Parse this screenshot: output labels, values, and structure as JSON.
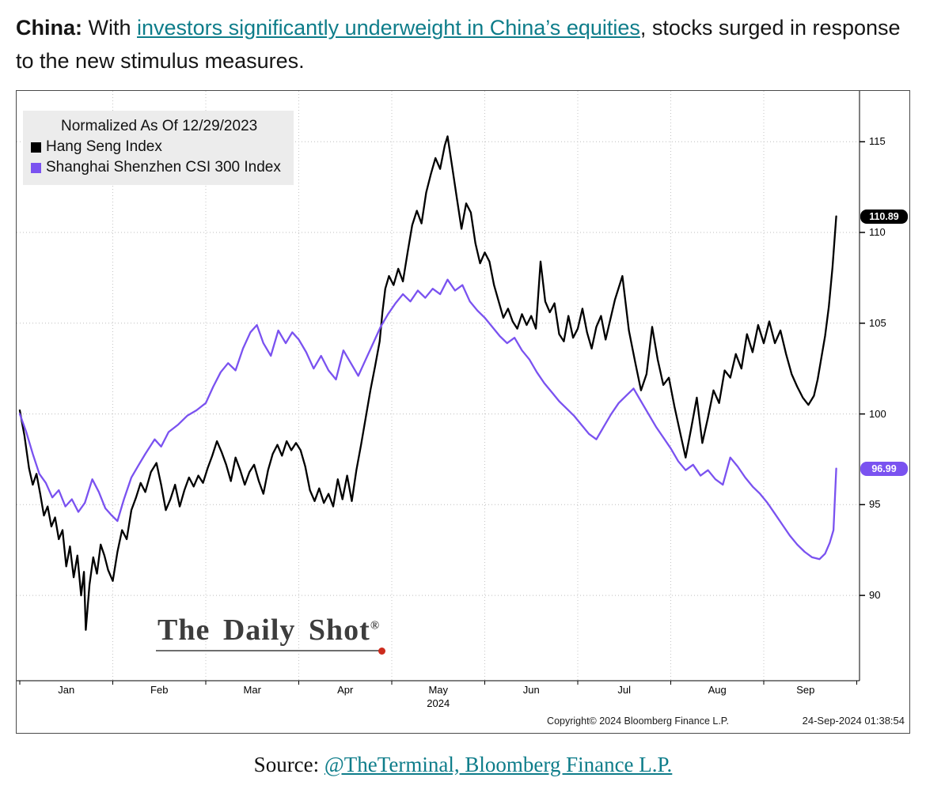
{
  "headline": {
    "bold": "China:",
    "text1": "With",
    "link_text": "investors significantly underweight in China’s equities",
    "text2": ", stocks surged in response to the new stimulus measures."
  },
  "colors": {
    "accent_link": "#0e7d8a",
    "hsi_line": "#000000",
    "csi_line": "#7a52f0",
    "legend_bg": "#ececec",
    "watermark_dot": "#cc2b1d"
  },
  "watermark": {
    "text": "The Daily Shot",
    "reg": "®"
  },
  "footer": {
    "copyright": "Copyright© 2024 Bloomberg Finance L.P.",
    "timestamp": "24-Sep-2024 01:38:54"
  },
  "source": {
    "prefix": "Source: ",
    "link_text": "@TheTerminal, Bloomberg Finance L.P."
  },
  "chart_data": {
    "type": "line",
    "legend_title": "Normalized As Of 12/29/2023",
    "x_unit": "months from 2024-01-01 (data through 24-Sep-2024)",
    "x_domain": [
      0,
      9.03
    ],
    "y_domain": [
      85.3,
      117.8
    ],
    "y_ticks": [
      90,
      95,
      100,
      105,
      110,
      115
    ],
    "grid": "dotted",
    "legend_position": "top-left",
    "x_labels": [
      {
        "label": "Jan",
        "m": 0.5
      },
      {
        "label": "Feb",
        "m": 1.5
      },
      {
        "label": "Mar",
        "m": 2.5
      },
      {
        "label": "Apr",
        "m": 3.5
      },
      {
        "label": "May",
        "m": 4.5,
        "sub": "2024"
      },
      {
        "label": "Jun",
        "m": 5.5
      },
      {
        "label": "Jul",
        "m": 6.5
      },
      {
        "label": "Aug",
        "m": 7.5
      },
      {
        "label": "Sep",
        "m": 8.45
      }
    ],
    "last_values": [
      {
        "label": "110.89",
        "value": 110.89,
        "color": "#000000",
        "series": "Hang Seng Index"
      },
      {
        "label": "96.99",
        "value": 96.99,
        "color": "#7a52f0",
        "series": "Shanghai Shenzhen CSI 300 Index"
      }
    ],
    "series": [
      {
        "name": "Hang Seng Index",
        "color": "#000000",
        "points": [
          [
            0,
            100.2
          ],
          [
            0.05,
            98.8
          ],
          [
            0.1,
            97.0
          ],
          [
            0.14,
            96.1
          ],
          [
            0.18,
            96.7
          ],
          [
            0.22,
            95.6
          ],
          [
            0.26,
            94.4
          ],
          [
            0.3,
            94.9
          ],
          [
            0.34,
            93.8
          ],
          [
            0.38,
            94.3
          ],
          [
            0.42,
            93.1
          ],
          [
            0.46,
            93.6
          ],
          [
            0.5,
            91.6
          ],
          [
            0.54,
            92.7
          ],
          [
            0.58,
            91.0
          ],
          [
            0.62,
            92.2
          ],
          [
            0.66,
            90.0
          ],
          [
            0.69,
            91.3
          ],
          [
            0.71,
            88.1
          ],
          [
            0.75,
            90.6
          ],
          [
            0.79,
            92.1
          ],
          [
            0.83,
            91.2
          ],
          [
            0.87,
            92.8
          ],
          [
            0.91,
            92.2
          ],
          [
            0.95,
            91.4
          ],
          [
            1.0,
            90.8
          ],
          [
            1.05,
            92.4
          ],
          [
            1.1,
            93.6
          ],
          [
            1.15,
            93.1
          ],
          [
            1.2,
            94.7
          ],
          [
            1.25,
            95.4
          ],
          [
            1.3,
            96.2
          ],
          [
            1.35,
            95.7
          ],
          [
            1.41,
            96.8
          ],
          [
            1.47,
            97.3
          ],
          [
            1.52,
            96.1
          ],
          [
            1.57,
            94.7
          ],
          [
            1.62,
            95.3
          ],
          [
            1.67,
            96.1
          ],
          [
            1.72,
            94.9
          ],
          [
            1.77,
            95.8
          ],
          [
            1.82,
            96.5
          ],
          [
            1.87,
            96.0
          ],
          [
            1.92,
            96.6
          ],
          [
            1.97,
            96.2
          ],
          [
            2.02,
            97.0
          ],
          [
            2.07,
            97.7
          ],
          [
            2.12,
            98.5
          ],
          [
            2.17,
            97.9
          ],
          [
            2.22,
            97.2
          ],
          [
            2.27,
            96.3
          ],
          [
            2.32,
            97.6
          ],
          [
            2.37,
            96.9
          ],
          [
            2.42,
            96.1
          ],
          [
            2.47,
            96.8
          ],
          [
            2.52,
            97.2
          ],
          [
            2.57,
            96.3
          ],
          [
            2.62,
            95.6
          ],
          [
            2.67,
            96.9
          ],
          [
            2.72,
            97.8
          ],
          [
            2.77,
            98.3
          ],
          [
            2.82,
            97.7
          ],
          [
            2.87,
            98.5
          ],
          [
            2.92,
            98.0
          ],
          [
            2.97,
            98.4
          ],
          [
            3.02,
            98.0
          ],
          [
            3.07,
            97.1
          ],
          [
            3.12,
            95.8
          ],
          [
            3.17,
            95.2
          ],
          [
            3.22,
            95.9
          ],
          [
            3.27,
            95.1
          ],
          [
            3.32,
            95.6
          ],
          [
            3.37,
            94.9
          ],
          [
            3.42,
            96.4
          ],
          [
            3.47,
            95.3
          ],
          [
            3.52,
            96.6
          ],
          [
            3.57,
            95.2
          ],
          [
            3.62,
            96.9
          ],
          [
            3.67,
            98.3
          ],
          [
            3.72,
            99.8
          ],
          [
            3.77,
            101.3
          ],
          [
            3.82,
            102.6
          ],
          [
            3.87,
            104.0
          ],
          [
            3.9,
            105.6
          ],
          [
            3.93,
            106.9
          ],
          [
            3.97,
            107.6
          ],
          [
            4.02,
            107.1
          ],
          [
            4.07,
            108.0
          ],
          [
            4.12,
            107.3
          ],
          [
            4.17,
            108.9
          ],
          [
            4.22,
            110.4
          ],
          [
            4.27,
            111.2
          ],
          [
            4.32,
            110.5
          ],
          [
            4.37,
            112.2
          ],
          [
            4.42,
            113.2
          ],
          [
            4.47,
            114.1
          ],
          [
            4.52,
            113.5
          ],
          [
            4.57,
            114.8
          ],
          [
            4.6,
            115.3
          ],
          [
            4.65,
            113.6
          ],
          [
            4.7,
            111.9
          ],
          [
            4.75,
            110.2
          ],
          [
            4.8,
            111.6
          ],
          [
            4.85,
            111.1
          ],
          [
            4.9,
            109.4
          ],
          [
            4.95,
            108.3
          ],
          [
            5.0,
            108.9
          ],
          [
            5.05,
            108.4
          ],
          [
            5.1,
            107.1
          ],
          [
            5.15,
            106.2
          ],
          [
            5.2,
            105.3
          ],
          [
            5.25,
            105.8
          ],
          [
            5.3,
            105.1
          ],
          [
            5.35,
            104.7
          ],
          [
            5.4,
            105.5
          ],
          [
            5.45,
            104.9
          ],
          [
            5.5,
            105.4
          ],
          [
            5.55,
            104.7
          ],
          [
            5.6,
            108.4
          ],
          [
            5.65,
            106.2
          ],
          [
            5.7,
            105.6
          ],
          [
            5.75,
            106.1
          ],
          [
            5.8,
            104.4
          ],
          [
            5.85,
            104.0
          ],
          [
            5.9,
            105.4
          ],
          [
            5.95,
            104.2
          ],
          [
            6.0,
            104.7
          ],
          [
            6.05,
            105.8
          ],
          [
            6.1,
            104.5
          ],
          [
            6.15,
            103.6
          ],
          [
            6.2,
            104.8
          ],
          [
            6.25,
            105.4
          ],
          [
            6.3,
            104.1
          ],
          [
            6.35,
            105.2
          ],
          [
            6.4,
            106.3
          ],
          [
            6.48,
            107.6
          ],
          [
            6.55,
            104.6
          ],
          [
            6.62,
            102.8
          ],
          [
            6.68,
            101.3
          ],
          [
            6.74,
            102.2
          ],
          [
            6.8,
            104.8
          ],
          [
            6.86,
            103.0
          ],
          [
            6.92,
            101.6
          ],
          [
            6.98,
            102.0
          ],
          [
            7.04,
            100.4
          ],
          [
            7.1,
            99.0
          ],
          [
            7.16,
            97.6
          ],
          [
            7.22,
            99.2
          ],
          [
            7.28,
            100.9
          ],
          [
            7.34,
            98.4
          ],
          [
            7.4,
            99.8
          ],
          [
            7.46,
            101.3
          ],
          [
            7.52,
            100.6
          ],
          [
            7.58,
            102.4
          ],
          [
            7.64,
            102.0
          ],
          [
            7.7,
            103.3
          ],
          [
            7.76,
            102.5
          ],
          [
            7.82,
            104.4
          ],
          [
            7.88,
            103.4
          ],
          [
            7.94,
            104.9
          ],
          [
            8.0,
            103.9
          ],
          [
            8.06,
            105.1
          ],
          [
            8.12,
            103.9
          ],
          [
            8.18,
            104.6
          ],
          [
            8.24,
            103.3
          ],
          [
            8.3,
            102.2
          ],
          [
            8.36,
            101.5
          ],
          [
            8.42,
            100.9
          ],
          [
            8.48,
            100.5
          ],
          [
            8.54,
            101.0
          ],
          [
            8.58,
            101.9
          ],
          [
            8.62,
            103.1
          ],
          [
            8.66,
            104.3
          ],
          [
            8.7,
            105.9
          ],
          [
            8.74,
            108.1
          ],
          [
            8.78,
            110.89
          ]
        ]
      },
      {
        "name": "Shanghai Shenzhen CSI 300 Index",
        "color": "#7a52f0",
        "points": [
          [
            0,
            100.0
          ],
          [
            0.07,
            99.0
          ],
          [
            0.14,
            97.8
          ],
          [
            0.21,
            96.7
          ],
          [
            0.28,
            96.2
          ],
          [
            0.35,
            95.4
          ],
          [
            0.42,
            95.8
          ],
          [
            0.49,
            94.9
          ],
          [
            0.56,
            95.3
          ],
          [
            0.63,
            94.6
          ],
          [
            0.7,
            95.1
          ],
          [
            0.78,
            96.4
          ],
          [
            0.85,
            95.7
          ],
          [
            0.92,
            94.8
          ],
          [
            0.99,
            94.4
          ],
          [
            1.05,
            94.1
          ],
          [
            1.12,
            95.3
          ],
          [
            1.2,
            96.5
          ],
          [
            1.28,
            97.2
          ],
          [
            1.35,
            97.8
          ],
          [
            1.45,
            98.6
          ],
          [
            1.52,
            98.2
          ],
          [
            1.6,
            99.0
          ],
          [
            1.7,
            99.4
          ],
          [
            1.8,
            99.9
          ],
          [
            1.9,
            100.2
          ],
          [
            2.0,
            100.6
          ],
          [
            2.08,
            101.5
          ],
          [
            2.16,
            102.3
          ],
          [
            2.24,
            102.8
          ],
          [
            2.32,
            102.4
          ],
          [
            2.4,
            103.6
          ],
          [
            2.48,
            104.5
          ],
          [
            2.55,
            104.9
          ],
          [
            2.62,
            103.9
          ],
          [
            2.7,
            103.2
          ],
          [
            2.78,
            104.6
          ],
          [
            2.86,
            103.9
          ],
          [
            2.93,
            104.5
          ],
          [
            3.0,
            104.1
          ],
          [
            3.08,
            103.4
          ],
          [
            3.16,
            102.5
          ],
          [
            3.24,
            103.2
          ],
          [
            3.32,
            102.4
          ],
          [
            3.4,
            101.9
          ],
          [
            3.48,
            103.5
          ],
          [
            3.56,
            102.8
          ],
          [
            3.64,
            102.1
          ],
          [
            3.72,
            103.0
          ],
          [
            3.8,
            103.9
          ],
          [
            3.88,
            104.8
          ],
          [
            3.96,
            105.5
          ],
          [
            4.04,
            106.1
          ],
          [
            4.12,
            106.6
          ],
          [
            4.2,
            106.2
          ],
          [
            4.28,
            106.8
          ],
          [
            4.36,
            106.4
          ],
          [
            4.44,
            106.9
          ],
          [
            4.52,
            106.6
          ],
          [
            4.6,
            107.4
          ],
          [
            4.68,
            106.8
          ],
          [
            4.76,
            107.1
          ],
          [
            4.84,
            106.2
          ],
          [
            4.92,
            105.7
          ],
          [
            5.0,
            105.3
          ],
          [
            5.08,
            104.8
          ],
          [
            5.16,
            104.3
          ],
          [
            5.24,
            103.9
          ],
          [
            5.32,
            104.2
          ],
          [
            5.4,
            103.5
          ],
          [
            5.48,
            103.0
          ],
          [
            5.56,
            102.3
          ],
          [
            5.64,
            101.7
          ],
          [
            5.72,
            101.2
          ],
          [
            5.8,
            100.7
          ],
          [
            5.88,
            100.3
          ],
          [
            5.96,
            99.9
          ],
          [
            6.04,
            99.4
          ],
          [
            6.12,
            98.9
          ],
          [
            6.2,
            98.6
          ],
          [
            6.28,
            99.3
          ],
          [
            6.36,
            100.0
          ],
          [
            6.44,
            100.6
          ],
          [
            6.52,
            101.0
          ],
          [
            6.6,
            101.4
          ],
          [
            6.68,
            100.7
          ],
          [
            6.76,
            100.0
          ],
          [
            6.84,
            99.3
          ],
          [
            6.92,
            98.7
          ],
          [
            7.0,
            98.1
          ],
          [
            7.08,
            97.4
          ],
          [
            7.16,
            96.9
          ],
          [
            7.24,
            97.2
          ],
          [
            7.32,
            96.6
          ],
          [
            7.4,
            96.9
          ],
          [
            7.48,
            96.4
          ],
          [
            7.56,
            96.1
          ],
          [
            7.64,
            97.6
          ],
          [
            7.72,
            97.1
          ],
          [
            7.8,
            96.5
          ],
          [
            7.88,
            96.0
          ],
          [
            7.96,
            95.6
          ],
          [
            8.04,
            95.1
          ],
          [
            8.12,
            94.5
          ],
          [
            8.2,
            93.9
          ],
          [
            8.28,
            93.3
          ],
          [
            8.36,
            92.8
          ],
          [
            8.44,
            92.4
          ],
          [
            8.52,
            92.1
          ],
          [
            8.6,
            92.0
          ],
          [
            8.66,
            92.3
          ],
          [
            8.71,
            92.9
          ],
          [
            8.75,
            93.6
          ],
          [
            8.78,
            96.99
          ]
        ]
      }
    ]
  }
}
